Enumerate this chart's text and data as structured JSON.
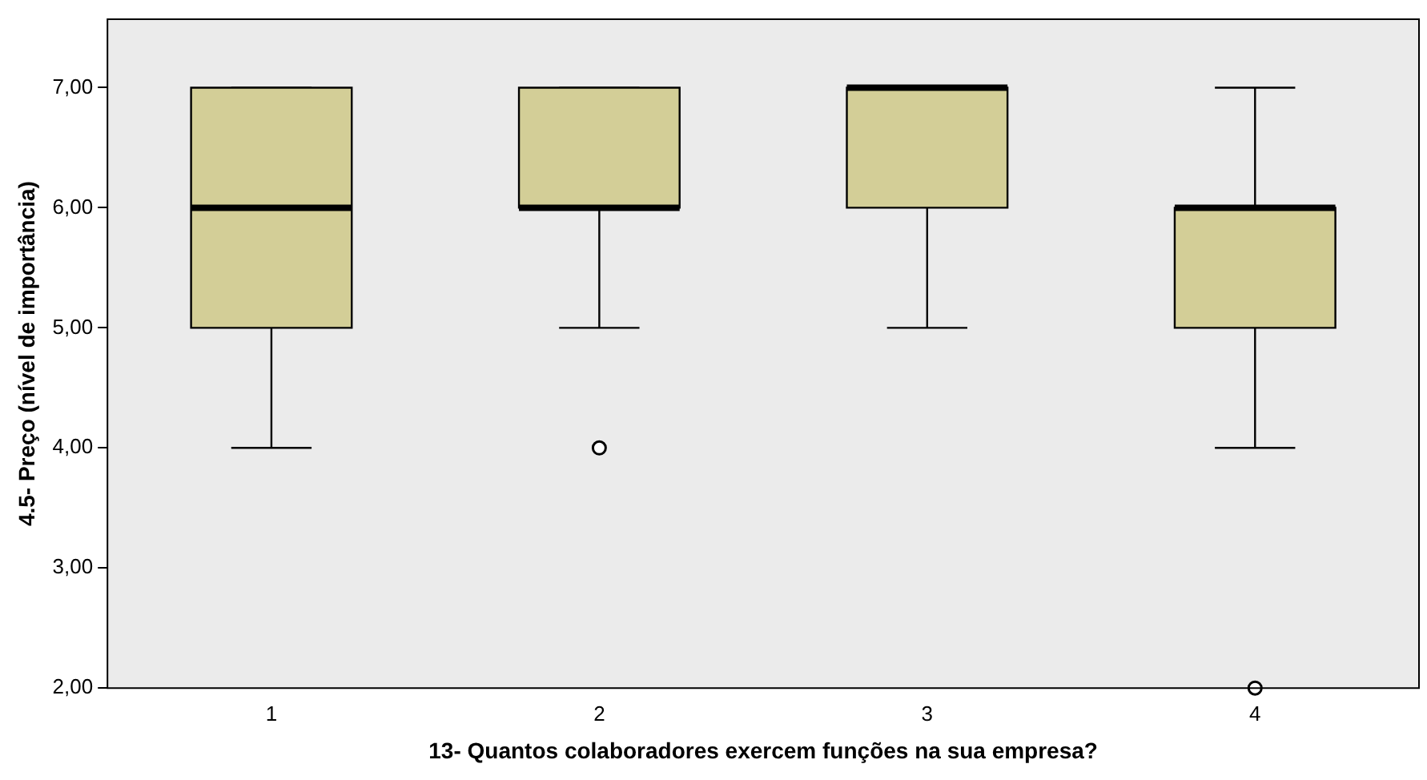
{
  "chart_data": {
    "type": "box",
    "xlabel": "13- Quantos colaboradores exercem funções na sua empresa?",
    "ylabel": "4.5- Preço (nível de importância)",
    "categories": [
      "1",
      "2",
      "3",
      "4"
    ],
    "series": [
      {
        "color": "#d3ce97",
        "boxes": [
          {
            "low": 4,
            "q1": 5,
            "median": 6,
            "q3": 7,
            "high": 7
          },
          {
            "low": 5,
            "q1": 6,
            "median": 6,
            "q3": 7,
            "high": 7,
            "outliers": [
              4
            ]
          },
          {
            "low": 5,
            "q1": 6,
            "median": 7,
            "q3": 7,
            "high": 7
          },
          {
            "low": 4,
            "q1": 5,
            "median": 6,
            "q3": 6,
            "high": 7,
            "outliers": [
              2
            ]
          }
        ]
      }
    ],
    "ylim": [
      2,
      7.57
    ],
    "yticks": [
      {
        "value": 2,
        "label": "2,00"
      },
      {
        "value": 3,
        "label": "3,00"
      },
      {
        "value": 4,
        "label": "4,00"
      },
      {
        "value": 5,
        "label": "5,00"
      },
      {
        "value": 6,
        "label": "6,00"
      },
      {
        "value": 7,
        "label": "7,00"
      }
    ],
    "grid": false
  }
}
